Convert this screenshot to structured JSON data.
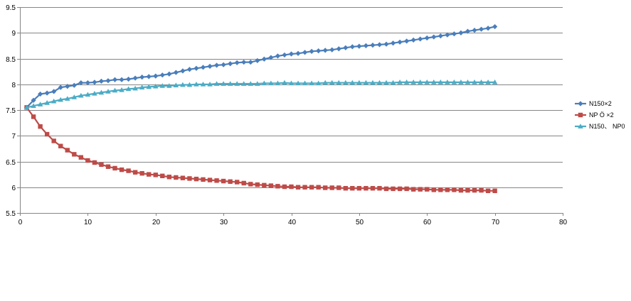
{
  "chart_data": {
    "type": "line",
    "title": "",
    "xlabel": "",
    "ylabel": "",
    "xlim": [
      0,
      80
    ],
    "ylim": [
      5.5,
      9.5
    ],
    "x_ticks": [
      0,
      10,
      20,
      30,
      40,
      50,
      60,
      70,
      80
    ],
    "y_ticks": [
      5.5,
      6,
      6.5,
      7,
      7.5,
      8,
      8.5,
      9,
      9.5
    ],
    "x_tick_labels": [
      "0",
      "10",
      "20",
      "30",
      "40",
      "50",
      "60",
      "70",
      "80"
    ],
    "y_tick_labels": [
      "5.5",
      "6",
      "6.5",
      "7",
      "7.5",
      "8",
      "8.5",
      "9",
      "9.5"
    ],
    "grid": "horizontal",
    "legend_position": "right",
    "series": [
      {
        "name": "N150×2",
        "color": "#4a7ebb",
        "marker": "diamond",
        "values": [
          7.55,
          7.69,
          7.81,
          7.83,
          7.86,
          7.94,
          7.96,
          7.98,
          8.03,
          8.03,
          8.04,
          8.06,
          8.07,
          8.09,
          8.09,
          8.1,
          8.12,
          8.14,
          8.15,
          8.16,
          8.18,
          8.2,
          8.23,
          8.26,
          8.29,
          8.31,
          8.33,
          8.35,
          8.37,
          8.38,
          8.4,
          8.42,
          8.43,
          8.43,
          8.46,
          8.49,
          8.52,
          8.55,
          8.57,
          8.59,
          8.6,
          8.62,
          8.64,
          8.65,
          8.66,
          8.67,
          8.69,
          8.71,
          8.73,
          8.74,
          8.75,
          8.76,
          8.77,
          8.78,
          8.8,
          8.82,
          8.84,
          8.86,
          8.88,
          8.9,
          8.92,
          8.94,
          8.96,
          8.98,
          9.0,
          9.03,
          9.05,
          9.07,
          9.09,
          9.12
        ]
      },
      {
        "name": "NP Ö ×2",
        "color": "#be4b48",
        "marker": "square",
        "values": [
          7.55,
          7.37,
          7.18,
          7.03,
          6.9,
          6.8,
          6.72,
          6.64,
          6.58,
          6.52,
          6.48,
          6.44,
          6.4,
          6.37,
          6.34,
          6.32,
          6.29,
          6.27,
          6.25,
          6.24,
          6.22,
          6.2,
          6.19,
          6.18,
          6.17,
          6.16,
          6.15,
          6.14,
          6.13,
          6.12,
          6.11,
          6.1,
          6.08,
          6.06,
          6.05,
          6.04,
          6.03,
          6.02,
          6.01,
          6.01,
          6.0,
          6.0,
          6.0,
          6.0,
          5.99,
          5.99,
          5.99,
          5.98,
          5.98,
          5.98,
          5.98,
          5.98,
          5.98,
          5.97,
          5.97,
          5.97,
          5.97,
          5.96,
          5.96,
          5.96,
          5.95,
          5.95,
          5.95,
          5.95,
          5.94,
          5.94,
          5.94,
          5.94,
          5.93,
          5.93
        ]
      },
      {
        "name": "N150、 NP0",
        "color": "#4bacc6",
        "marker": "triangle",
        "values": [
          7.55,
          7.58,
          7.61,
          7.64,
          7.67,
          7.7,
          7.72,
          7.75,
          7.78,
          7.8,
          7.82,
          7.84,
          7.86,
          7.88,
          7.89,
          7.91,
          7.92,
          7.94,
          7.95,
          7.96,
          7.97,
          7.97,
          7.98,
          7.99,
          7.99,
          8.0,
          8.0,
          8.0,
          8.01,
          8.01,
          8.01,
          8.01,
          8.01,
          8.01,
          8.01,
          8.02,
          8.02,
          8.02,
          8.03,
          8.02,
          8.02,
          8.02,
          8.02,
          8.02,
          8.03,
          8.03,
          8.03,
          8.03,
          8.03,
          8.03,
          8.03,
          8.03,
          8.03,
          8.03,
          8.03,
          8.04,
          8.04,
          8.04,
          8.04,
          8.04,
          8.04,
          8.04,
          8.04,
          8.04,
          8.04,
          8.04,
          8.04,
          8.04,
          8.04,
          8.04
        ]
      }
    ]
  }
}
